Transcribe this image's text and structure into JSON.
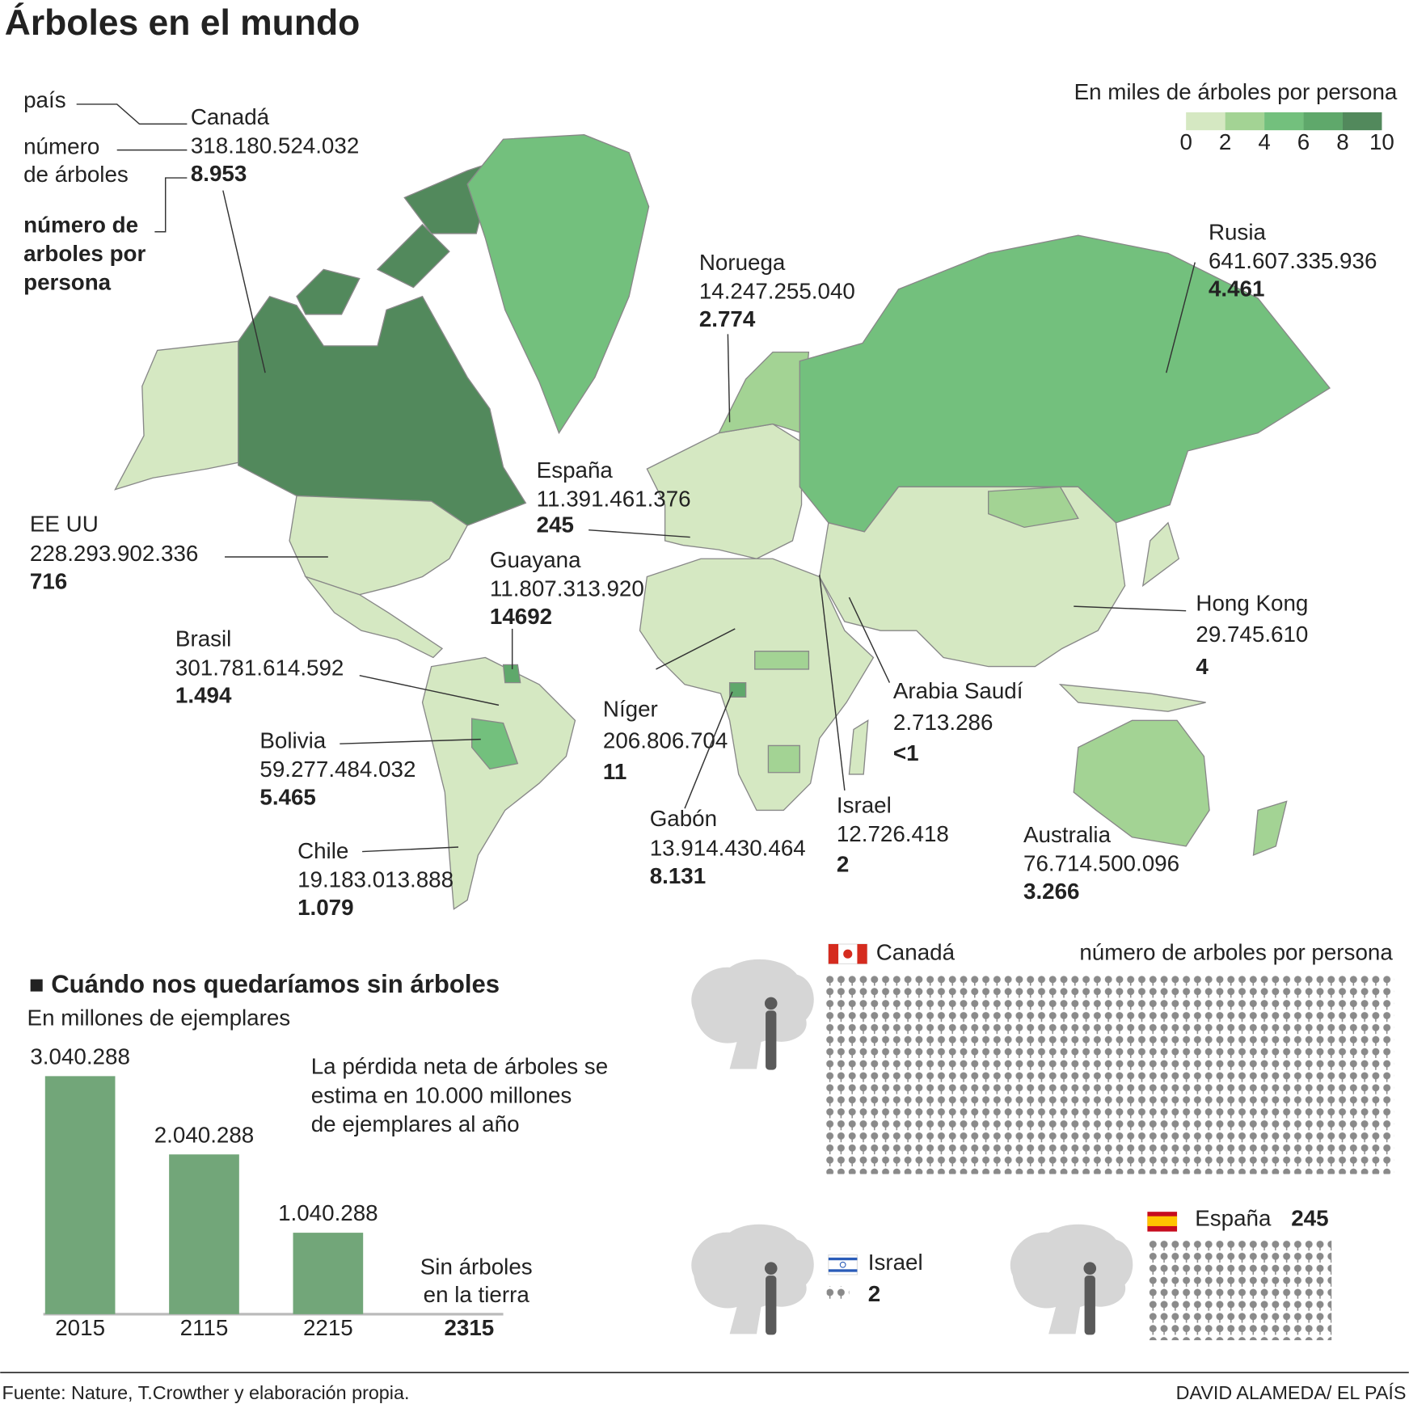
{
  "header": {
    "title": "Árboles en el mundo"
  },
  "key": {
    "country": "país",
    "trees_lines": [
      "número",
      "de árboles"
    ],
    "per_person_lines": [
      "número de",
      "arboles por",
      "persona"
    ]
  },
  "legend": {
    "title": "En miles de árboles por persona",
    "ticks": [
      0,
      2,
      4,
      6,
      8,
      10
    ],
    "colors": [
      "#d5e8c2",
      "#a3d394",
      "#73c07d",
      "#5fa86b",
      "#52895c"
    ]
  },
  "countries": [
    {
      "name": "Canadá",
      "trees": "318.180.524.032",
      "per_person": "8.953"
    },
    {
      "name": "Noruega",
      "trees": "14.247.255.040",
      "per_person": "2.774"
    },
    {
      "name": "Rusia",
      "trees": "641.607.335.936",
      "per_person": "4.461"
    },
    {
      "name": "España",
      "trees": "11.391.461.376",
      "per_person": "245"
    },
    {
      "name": "EE UU",
      "trees": "228.293.902.336",
      "per_person": "716"
    },
    {
      "name": "Guayana",
      "trees": "11.807.313.920",
      "per_person": "14692"
    },
    {
      "name": "Brasil",
      "trees": "301.781.614.592",
      "per_person": "1.494"
    },
    {
      "name": "Bolivia",
      "trees": "59.277.484.032",
      "per_person": "5.465"
    },
    {
      "name": "Chile",
      "trees": "19.183.013.888",
      "per_person": "1.079"
    },
    {
      "name": "Níger",
      "trees": "206.806.704",
      "per_person": "11"
    },
    {
      "name": "Gabón",
      "trees": "13.914.430.464",
      "per_person": "8.131"
    },
    {
      "name": "Israel",
      "trees": "12.726.418",
      "per_person": "2"
    },
    {
      "name": "Arabia Saudí",
      "trees": "2.713.286",
      "per_person": "<1"
    },
    {
      "name": "Hong Kong",
      "trees": "29.745.610",
      "per_person": "4"
    },
    {
      "name": "Australia",
      "trees": "76.714.500.096",
      "per_person": "3.266"
    }
  ],
  "chart_data": {
    "type": "bar",
    "title": "Cuándo nos quedaríamos sin árboles",
    "subtitle": "En millones de ejemplares",
    "categories": [
      "2015",
      "2115",
      "2215",
      "2315"
    ],
    "values": [
      3040288,
      2040288,
      1040288,
      null
    ],
    "value_labels": [
      "3.040.288",
      "2.040.288",
      "1.040.288",
      null
    ],
    "color": "#72a679",
    "note_lines": [
      "La pérdida neta de árboles se",
      "estima en 10.000 millones",
      "de ejemplares al año"
    ],
    "end_lines": [
      "Sin árboles",
      "en la tierra"
    ]
  },
  "comparison": {
    "title": "número de arboles por persona",
    "canada": "Canadá",
    "israel": {
      "name": "Israel",
      "value": "2"
    },
    "spain": {
      "name": "España",
      "value": "245"
    }
  },
  "footer": {
    "source": "Fuente: Nature, T.Crowther y elaboración propia.",
    "credit": "DAVID ALAMEDA/ EL PAÍS"
  }
}
